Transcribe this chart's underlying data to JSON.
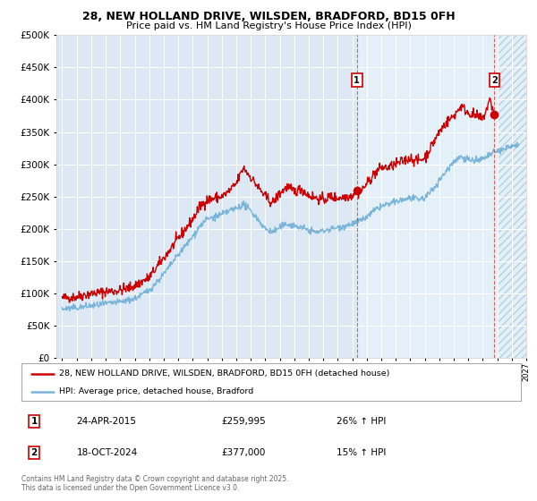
{
  "title1": "28, NEW HOLLAND DRIVE, WILSDEN, BRADFORD, BD15 0FH",
  "title2": "Price paid vs. HM Land Registry's House Price Index (HPI)",
  "bg_color": "#dce9f5",
  "bg_color_light": "#e8f2fa",
  "grid_color": "#ffffff",
  "red_line_color": "#cc0000",
  "blue_line_color": "#7ab4d8",
  "marker1_date_x": 2015.32,
  "marker1_y": 259995,
  "marker2_date_x": 2024.8,
  "marker2_y": 377000,
  "vline1_x": 2015.32,
  "vline2_x": 2024.8,
  "ylim": [
    0,
    500000
  ],
  "xlim": [
    1994.6,
    2027.0
  ],
  "legend_label_red": "28, NEW HOLLAND DRIVE, WILSDEN, BRADFORD, BD15 0FH (detached house)",
  "legend_label_blue": "HPI: Average price, detached house, Bradford",
  "annotation1_date": "24-APR-2015",
  "annotation1_price": "£259,995",
  "annotation1_hpi": "26% ↑ HPI",
  "annotation2_date": "18-OCT-2024",
  "annotation2_price": "£377,000",
  "annotation2_hpi": "15% ↑ HPI",
  "footer": "Contains HM Land Registry data © Crown copyright and database right 2025.\nThis data is licensed under the Open Government Licence v3.0."
}
